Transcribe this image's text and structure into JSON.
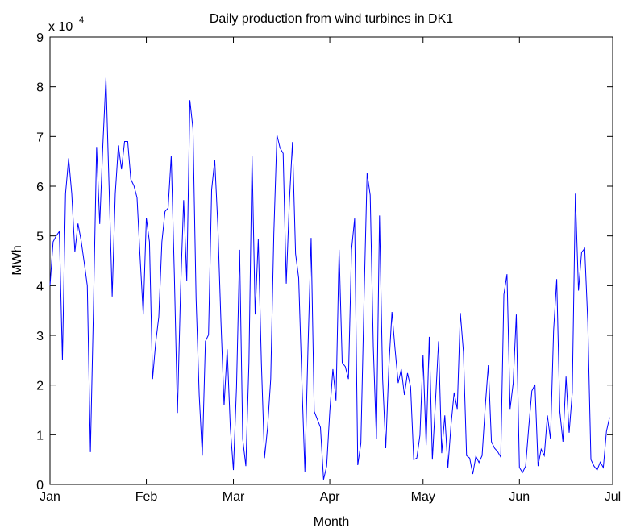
{
  "chart_data": {
    "type": "line",
    "title": "Daily production from wind turbines in DK1",
    "x_label": "Month",
    "y_label": "MWh",
    "y_multiplier_base": "x 10",
    "y_multiplier_exponent": "4",
    "xlim": [
      0,
      181
    ],
    "xticks": [
      {
        "value": 0,
        "label": "Jan"
      },
      {
        "value": 31,
        "label": "Feb"
      },
      {
        "value": 59,
        "label": "Mar"
      },
      {
        "value": 90,
        "label": "Apr"
      },
      {
        "value": 120,
        "label": "May"
      },
      {
        "value": 151,
        "label": "Jun"
      },
      {
        "value": 181,
        "label": "Jul"
      }
    ],
    "ylim": [
      0,
      9
    ],
    "yticks": [
      0,
      1,
      2,
      3,
      4,
      5,
      6,
      7,
      8,
      9
    ],
    "grid": false,
    "x": [
      0,
      1,
      2,
      3,
      4,
      5,
      6,
      7,
      8,
      9,
      10,
      11,
      12,
      13,
      14,
      15,
      16,
      17,
      18,
      19,
      20,
      21,
      22,
      23,
      24,
      25,
      26,
      27,
      28,
      29,
      30,
      31,
      32,
      33,
      34,
      35,
      36,
      37,
      38,
      39,
      40,
      41,
      42,
      43,
      44,
      45,
      46,
      47,
      48,
      49,
      50,
      51,
      52,
      53,
      54,
      55,
      56,
      57,
      58,
      59,
      60,
      61,
      62,
      63,
      64,
      65,
      66,
      67,
      68,
      69,
      70,
      71,
      72,
      73,
      74,
      75,
      76,
      77,
      78,
      79,
      80,
      81,
      82,
      83,
      84,
      85,
      86,
      87,
      88,
      89,
      90,
      91,
      92,
      93,
      94,
      95,
      96,
      97,
      98,
      99,
      100,
      101,
      102,
      103,
      104,
      105,
      106,
      107,
      108,
      109,
      110,
      111,
      112,
      113,
      114,
      115,
      116,
      117,
      118,
      119,
      120,
      121,
      122,
      123,
      124,
      125,
      126,
      127,
      128,
      129,
      130,
      131,
      132,
      133,
      134,
      135,
      136,
      137,
      138,
      139,
      140,
      141,
      142,
      143,
      144,
      145,
      146,
      147,
      148,
      149,
      150,
      151,
      152,
      153,
      154,
      155,
      156,
      157,
      158,
      159,
      160,
      161,
      162,
      163,
      164,
      165,
      166,
      167,
      168,
      169,
      170,
      171,
      172,
      173,
      174,
      175,
      176,
      177,
      178,
      179,
      180
    ],
    "series": [
      {
        "name": "DK1",
        "color": "#0000ff",
        "values": [
          4.0,
          4.88,
          5.0,
          5.09,
          2.51,
          5.85,
          6.56,
          5.85,
          4.68,
          5.25,
          4.91,
          4.47,
          4.0,
          0.65,
          3.6,
          6.79,
          5.24,
          6.82,
          8.18,
          6.0,
          3.78,
          5.85,
          6.82,
          6.34,
          6.9,
          6.9,
          6.14,
          6.01,
          5.77,
          4.55,
          3.42,
          5.36,
          4.88,
          2.12,
          2.85,
          3.37,
          4.88,
          5.49,
          5.56,
          6.61,
          4.23,
          1.44,
          3.9,
          5.72,
          4.1,
          7.73,
          7.15,
          3.74,
          1.8,
          0.58,
          2.88,
          3.01,
          5.93,
          6.53,
          5.2,
          3.26,
          1.59,
          2.72,
          1.15,
          0.29,
          1.96,
          4.72,
          0.91,
          0.37,
          2.45,
          6.61,
          3.42,
          4.93,
          2.45,
          0.53,
          1.15,
          2.12,
          5.04,
          7.03,
          6.77,
          6.66,
          4.04,
          5.69,
          6.89,
          4.64,
          4.15,
          2.12,
          0.26,
          2.77,
          4.96,
          1.47,
          1.31,
          1.15,
          0.1,
          0.37,
          1.47,
          2.32,
          1.69,
          4.72,
          2.45,
          2.37,
          2.12,
          4.72,
          5.35,
          0.39,
          0.83,
          3.66,
          6.26,
          5.82,
          2.77,
          0.91,
          5.41,
          2.12,
          0.73,
          2.37,
          3.47,
          2.72,
          2.04,
          2.32,
          1.8,
          2.24,
          1.96,
          0.5,
          0.53,
          0.99,
          2.61,
          0.79,
          2.97,
          0.5,
          1.67,
          2.88,
          0.63,
          1.39,
          0.34,
          1.2,
          1.85,
          1.52,
          3.45,
          2.66,
          0.58,
          0.53,
          0.21,
          0.57,
          0.44,
          0.58,
          1.56,
          2.4,
          0.86,
          0.73,
          0.66,
          0.55,
          3.82,
          4.23,
          1.52,
          2.04,
          3.42,
          0.34,
          0.24,
          0.37,
          1.15,
          1.88,
          2.01,
          0.37,
          0.71,
          0.58,
          1.39,
          0.91,
          3.1,
          4.13,
          1.47,
          0.86,
          2.17,
          1.04,
          1.85,
          5.85,
          3.9,
          4.67,
          4.75,
          3.26,
          0.5,
          0.37,
          0.29,
          0.45,
          0.34,
          1.07,
          1.35
        ]
      }
    ]
  }
}
